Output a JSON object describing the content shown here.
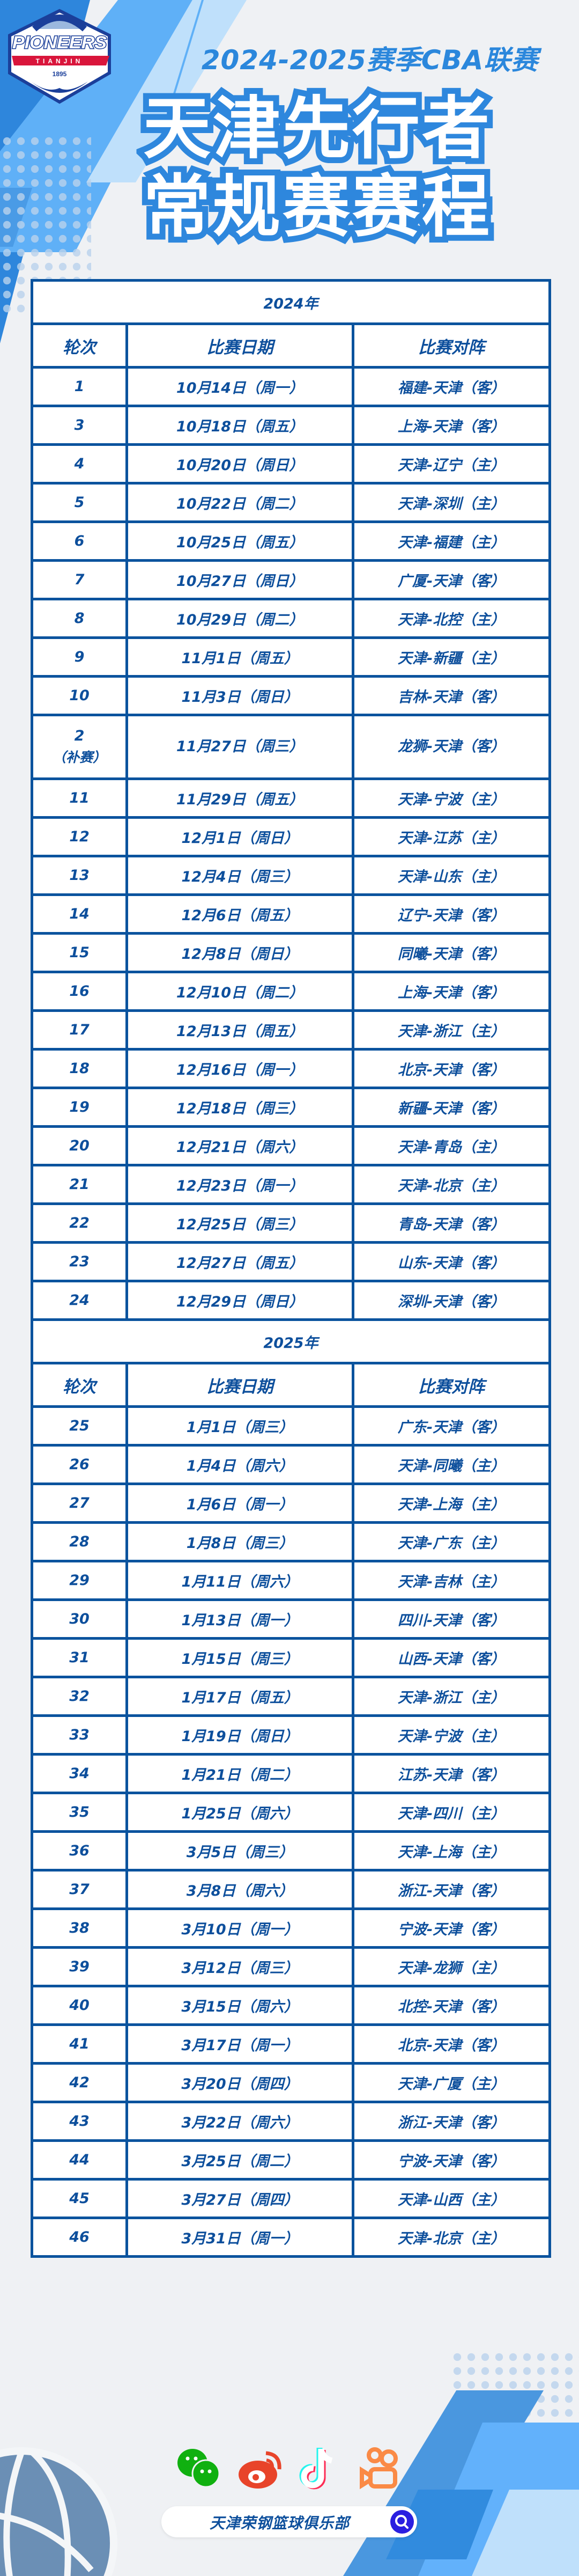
{
  "header": {
    "logo_text": "PIONEERS",
    "logo_subtext": "TIANJIN",
    "logo_year": "1895",
    "season": "2024-2025赛季CBA联赛",
    "title_line1": "天津先行者",
    "title_line2": "常规赛赛程"
  },
  "colors": {
    "primary": "#0d4f9c",
    "home": "#e0002a",
    "accent": "#2e87dd",
    "background": "#eff1f4"
  },
  "columns": {
    "round": "轮次",
    "date": "比赛日期",
    "matchup": "比赛对阵"
  },
  "sections": [
    {
      "year": "2024年",
      "games": [
        {
          "round": "1",
          "date": "10月14日（周一）",
          "matchup": "福建-天津（客）",
          "home": false
        },
        {
          "round": "3",
          "date": "10月18日（周五）",
          "matchup": "上海-天津（客）",
          "home": false
        },
        {
          "round": "4",
          "date": "10月20日（周日）",
          "matchup": "天津-辽宁（主）",
          "home": true
        },
        {
          "round": "5",
          "date": "10月22日（周二）",
          "matchup": "天津-深圳（主）",
          "home": true
        },
        {
          "round": "6",
          "date": "10月25日（周五）",
          "matchup": "天津-福建（主）",
          "home": true
        },
        {
          "round": "7",
          "date": "10月27日（周日）",
          "matchup": "广厦-天津（客）",
          "home": false
        },
        {
          "round": "8",
          "date": "10月29日（周二）",
          "matchup": "天津-北控（主）",
          "home": true
        },
        {
          "round": "9",
          "date": "11月1日（周五）",
          "matchup": "天津-新疆（主）",
          "home": true
        },
        {
          "round": "10",
          "date": "11月3日（周日）",
          "matchup": "吉林-天津（客）",
          "home": false
        },
        {
          "round": "2",
          "round_note": "（补赛）",
          "date": "11月27日（周三）",
          "matchup": "龙狮-天津（客）",
          "home": false
        },
        {
          "round": "11",
          "date": "11月29日（周五）",
          "matchup": "天津-宁波（主）",
          "home": true
        },
        {
          "round": "12",
          "date": "12月1日（周日）",
          "matchup": "天津-江苏（主）",
          "home": true
        },
        {
          "round": "13",
          "date": "12月4日（周三）",
          "matchup": "天津-山东（主）",
          "home": true
        },
        {
          "round": "14",
          "date": "12月6日（周五）",
          "matchup": "辽宁-天津（客）",
          "home": false
        },
        {
          "round": "15",
          "date": "12月8日（周日）",
          "matchup": "同曦-天津（客）",
          "home": false
        },
        {
          "round": "16",
          "date": "12月10日（周二）",
          "matchup": "上海-天津（客）",
          "home": false
        },
        {
          "round": "17",
          "date": "12月13日（周五）",
          "matchup": "天津-浙江（主）",
          "home": true
        },
        {
          "round": "18",
          "date": "12月16日（周一）",
          "matchup": "北京-天津（客）",
          "home": false
        },
        {
          "round": "19",
          "date": "12月18日（周三）",
          "matchup": "新疆-天津（客）",
          "home": false
        },
        {
          "round": "20",
          "date": "12月21日（周六）",
          "matchup": "天津-青岛（主）",
          "home": true
        },
        {
          "round": "21",
          "date": "12月23日（周一）",
          "matchup": "天津-北京（主）",
          "home": true
        },
        {
          "round": "22",
          "date": "12月25日（周三）",
          "matchup": "青岛-天津（客）",
          "home": false
        },
        {
          "round": "23",
          "date": "12月27日（周五）",
          "matchup": "山东-天津（客）",
          "home": false
        },
        {
          "round": "24",
          "date": "12月29日（周日）",
          "matchup": "深圳-天津（客）",
          "home": false
        }
      ]
    },
    {
      "year": "2025年",
      "games": [
        {
          "round": "25",
          "date": "1月1日（周三）",
          "matchup": "广东-天津（客）",
          "home": false
        },
        {
          "round": "26",
          "date": "1月4日（周六）",
          "matchup": "天津-同曦（主）",
          "home": true
        },
        {
          "round": "27",
          "date": "1月6日（周一）",
          "matchup": "天津-上海（主）",
          "home": true
        },
        {
          "round": "28",
          "date": "1月8日（周三）",
          "matchup": "天津-广东（主）",
          "home": true
        },
        {
          "round": "29",
          "date": "1月11日（周六）",
          "matchup": "天津-吉林（主）",
          "home": true
        },
        {
          "round": "30",
          "date": "1月13日（周一）",
          "matchup": "四川-天津（客）",
          "home": false
        },
        {
          "round": "31",
          "date": "1月15日（周三）",
          "matchup": "山西-天津（客）",
          "home": false
        },
        {
          "round": "32",
          "date": "1月17日（周五）",
          "matchup": "天津-浙江（主）",
          "home": true
        },
        {
          "round": "33",
          "date": "1月19日（周日）",
          "matchup": "天津-宁波（主）",
          "home": true
        },
        {
          "round": "34",
          "date": "1月21日（周二）",
          "matchup": "江苏-天津（客）",
          "home": false
        },
        {
          "round": "35",
          "date": "1月25日（周六）",
          "matchup": "天津-四川（主）",
          "home": true
        },
        {
          "round": "36",
          "date": "3月5日（周三）",
          "matchup": "天津-上海（主）",
          "home": true
        },
        {
          "round": "37",
          "date": "3月8日（周六）",
          "matchup": "浙江-天津（客）",
          "home": false
        },
        {
          "round": "38",
          "date": "3月10日（周一）",
          "matchup": "宁波-天津（客）",
          "home": false
        },
        {
          "round": "39",
          "date": "3月12日（周三）",
          "matchup": "天津-龙狮（主）",
          "home": true
        },
        {
          "round": "40",
          "date": "3月15日（周六）",
          "matchup": "北控-天津（客）",
          "home": false
        },
        {
          "round": "41",
          "date": "3月17日（周一）",
          "matchup": "北京-天津（客）",
          "home": false
        },
        {
          "round": "42",
          "date": "3月20日（周四）",
          "matchup": "天津-广厦（主）",
          "home": true
        },
        {
          "round": "43",
          "date": "3月22日（周六）",
          "matchup": "浙江-天津（客）",
          "home": false
        },
        {
          "round": "44",
          "date": "3月25日（周二）",
          "matchup": "宁波-天津（客）",
          "home": false
        },
        {
          "round": "45",
          "date": "3月27日（周四）",
          "matchup": "天津-山西（主）",
          "home": true
        },
        {
          "round": "46",
          "date": "3月31日（周一）",
          "matchup": "天津-北京（主）",
          "home": true
        }
      ]
    }
  ],
  "footer": {
    "social_icons": [
      "wechat-icon",
      "weibo-icon",
      "douyin-icon",
      "kuaishou-icon"
    ],
    "search_text": "天津荣钢篮球俱乐部"
  }
}
